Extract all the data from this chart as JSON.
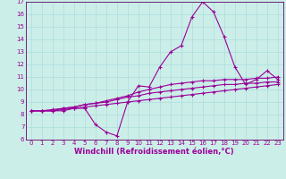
{
  "xlabel": "Windchill (Refroidissement éolien,°C)",
  "background_color": "#cceee8",
  "line_color": "#990099",
  "grid_color": "#aadddd",
  "x_values": [
    0,
    1,
    2,
    3,
    4,
    5,
    6,
    7,
    8,
    9,
    10,
    11,
    12,
    13,
    14,
    15,
    16,
    17,
    18,
    19,
    20,
    21,
    22,
    23
  ],
  "line1": [
    8.3,
    8.3,
    8.3,
    8.3,
    8.5,
    8.5,
    7.2,
    6.6,
    6.3,
    9.0,
    10.3,
    10.2,
    11.8,
    13.0,
    13.5,
    15.8,
    17.0,
    16.2,
    14.2,
    11.8,
    10.4,
    10.8,
    11.5,
    10.8
  ],
  "line2": [
    8.3,
    8.3,
    8.3,
    8.5,
    8.6,
    8.8,
    8.9,
    9.1,
    9.3,
    9.5,
    9.8,
    10.0,
    10.2,
    10.4,
    10.5,
    10.6,
    10.7,
    10.7,
    10.8,
    10.8,
    10.8,
    10.9,
    10.9,
    11.0
  ],
  "line3": [
    8.3,
    8.3,
    8.4,
    8.5,
    8.6,
    8.8,
    8.9,
    9.0,
    9.2,
    9.4,
    9.5,
    9.7,
    9.8,
    9.9,
    10.0,
    10.1,
    10.2,
    10.3,
    10.4,
    10.4,
    10.5,
    10.5,
    10.6,
    10.6
  ],
  "line4": [
    8.3,
    8.3,
    8.3,
    8.4,
    8.5,
    8.6,
    8.7,
    8.8,
    8.9,
    9.0,
    9.1,
    9.2,
    9.3,
    9.4,
    9.5,
    9.6,
    9.7,
    9.8,
    9.9,
    10.0,
    10.1,
    10.2,
    10.3,
    10.4
  ],
  "ylim": [
    6,
    17
  ],
  "xlim": [
    -0.5,
    23.5
  ],
  "yticks": [
    6,
    7,
    8,
    9,
    10,
    11,
    12,
    13,
    14,
    15,
    16,
    17
  ],
  "xticks": [
    0,
    1,
    2,
    3,
    4,
    5,
    6,
    7,
    8,
    9,
    10,
    11,
    12,
    13,
    14,
    15,
    16,
    17,
    18,
    19,
    20,
    21,
    22,
    23
  ],
  "marker": "+",
  "markersize": 3,
  "linewidth": 0.8,
  "tick_fontsize": 5.0,
  "xlabel_fontsize": 6.0,
  "spine_color": "#660066"
}
